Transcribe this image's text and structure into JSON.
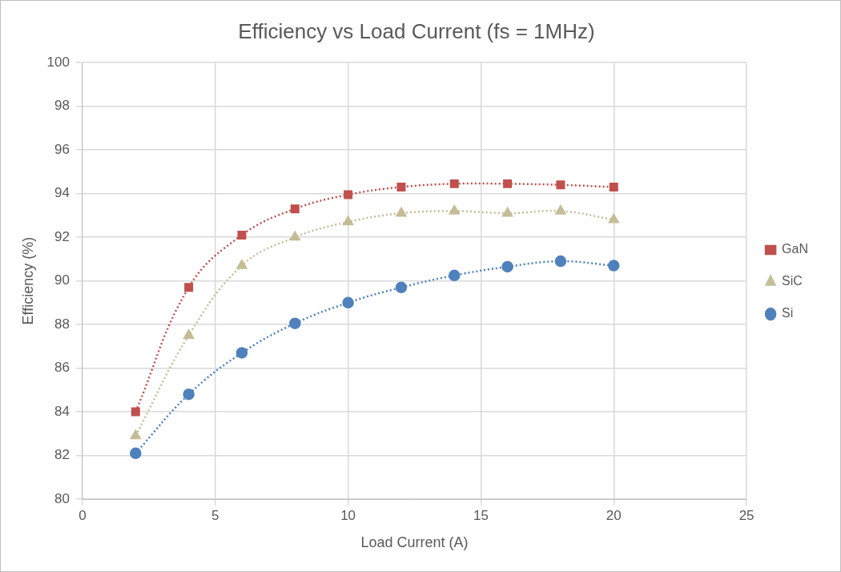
{
  "chart_data": {
    "type": "scatter",
    "title": "Efficiency vs Load Current (fs = 1MHz)",
    "x_label": "Load Current (A)",
    "y_label": "Efficiency (%)",
    "x": [
      2,
      4,
      6,
      8,
      10,
      12,
      14,
      16,
      18,
      20
    ],
    "series": [
      {
        "name": "GaN",
        "color": "#c0504d",
        "marker": "square",
        "line_style": "dotted",
        "values": [
          84.0,
          89.7,
          92.1,
          93.3,
          93.95,
          94.3,
          94.45,
          94.45,
          94.4,
          94.3
        ]
      },
      {
        "name": "SiC",
        "color": "#c4bd97",
        "marker": "triangle",
        "line_style": "dotted",
        "values": [
          82.9,
          87.5,
          90.7,
          92.0,
          92.7,
          93.1,
          93.2,
          93.1,
          93.2,
          92.8
        ]
      },
      {
        "name": "Si",
        "color": "#4f81bd",
        "marker": "circle",
        "line_style": "dotted",
        "values": [
          82.1,
          84.8,
          86.7,
          88.05,
          89.0,
          89.7,
          90.25,
          90.65,
          90.9,
          90.7
        ]
      }
    ],
    "xlim": [
      0,
      25
    ],
    "xticks": [
      0,
      5,
      10,
      15,
      20,
      25
    ],
    "ylim": [
      80,
      100
    ],
    "yticks": [
      80,
      82,
      84,
      86,
      88,
      90,
      92,
      94,
      96,
      98,
      100
    ],
    "grid": true,
    "legend": "right"
  }
}
